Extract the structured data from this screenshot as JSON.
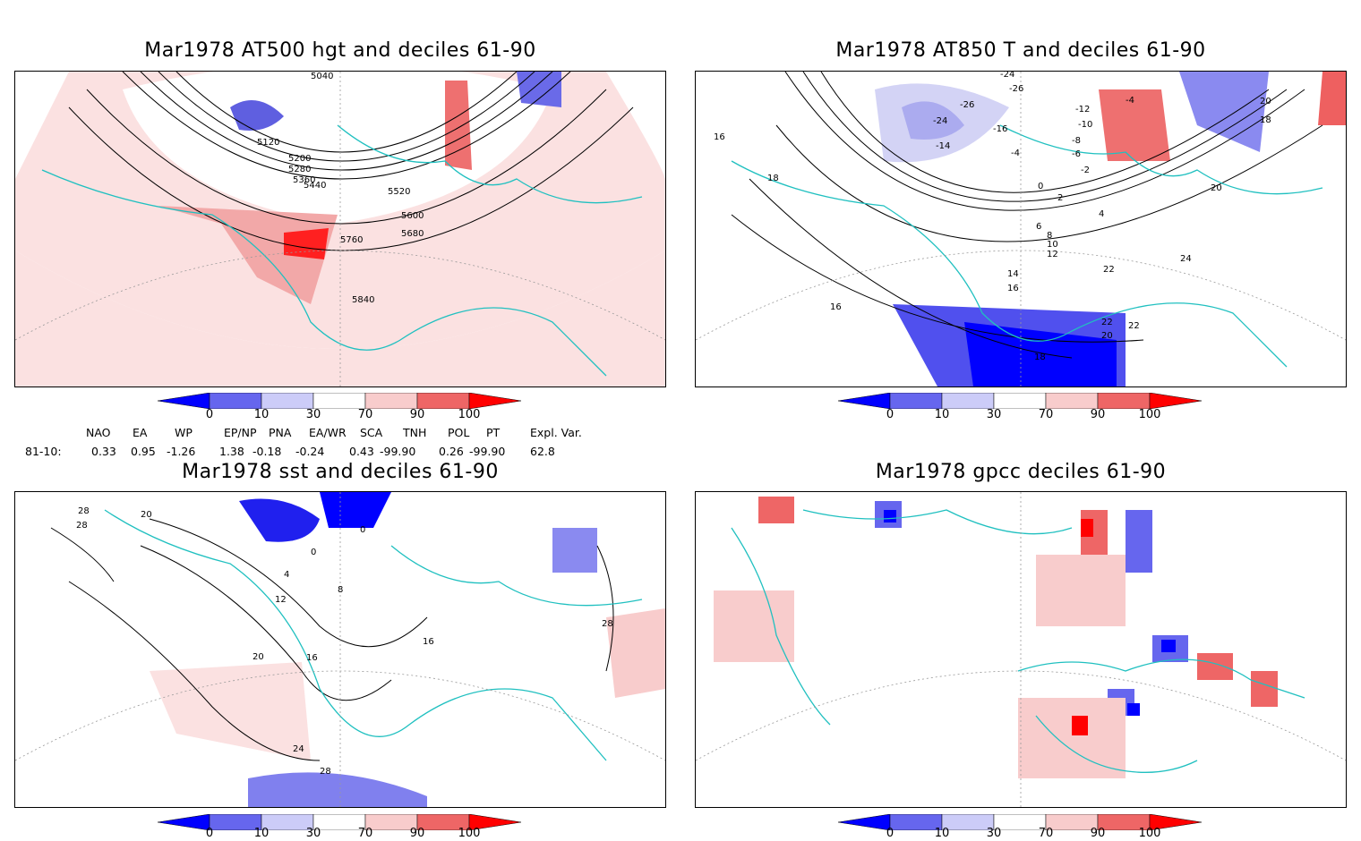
{
  "panels": [
    {
      "title": "Mar1978 AT500 hgt and deciles 61-90",
      "contour_labels": [
        "5040",
        "5120",
        "5200",
        "5280",
        "5360",
        "5440",
        "5520",
        "5600",
        "5680",
        "5760",
        "5840"
      ]
    },
    {
      "title": "Mar1978 AT850 T and deciles 61-90",
      "contour_labels": [
        "-24",
        "-26",
        "-26",
        "-24",
        "-14",
        "-16",
        "-12",
        "-10",
        "-8",
        "-6",
        "-4",
        "-4",
        "-2",
        "0",
        "2",
        "4",
        "6",
        "8",
        "10",
        "12",
        "14",
        "16",
        "16",
        "16",
        "18",
        "18",
        "18",
        "20",
        "20",
        "20",
        "22",
        "22",
        "22",
        "24"
      ]
    },
    {
      "title": "Mar1978 sst and deciles 61-90",
      "contour_labels": [
        "28",
        "28",
        "20",
        "0",
        "0",
        "4",
        "8",
        "12",
        "16",
        "16",
        "20",
        "24",
        "28",
        "28"
      ]
    },
    {
      "title": "Mar1978 gpcc deciles 61-90",
      "contour_labels": []
    }
  ],
  "colorbar": {
    "labels": [
      "0",
      "10",
      "30",
      "70",
      "90",
      "100"
    ],
    "colors": [
      "#0000ff",
      "#6666ee",
      "#ccccf8",
      "#ffffff",
      "#f8cccc",
      "#ee6666",
      "#ff0000"
    ]
  },
  "indices": {
    "headers": [
      "NAO",
      "EA",
      "WP",
      "EP/NP",
      "PNA",
      "EA/WR",
      "SCA",
      "TNH",
      "POL",
      "PT",
      "Expl. Var."
    ],
    "row_label": "81-10:",
    "values": [
      "0.33",
      "0.95",
      "-1.26",
      "1.38",
      "-0.18",
      "-0.24",
      "0.43",
      "-99.90",
      "0.26",
      "-99.90",
      "62.8"
    ]
  },
  "colors": {
    "coast": "#20c0c0",
    "contour": "#000000",
    "grid": "#999999"
  }
}
